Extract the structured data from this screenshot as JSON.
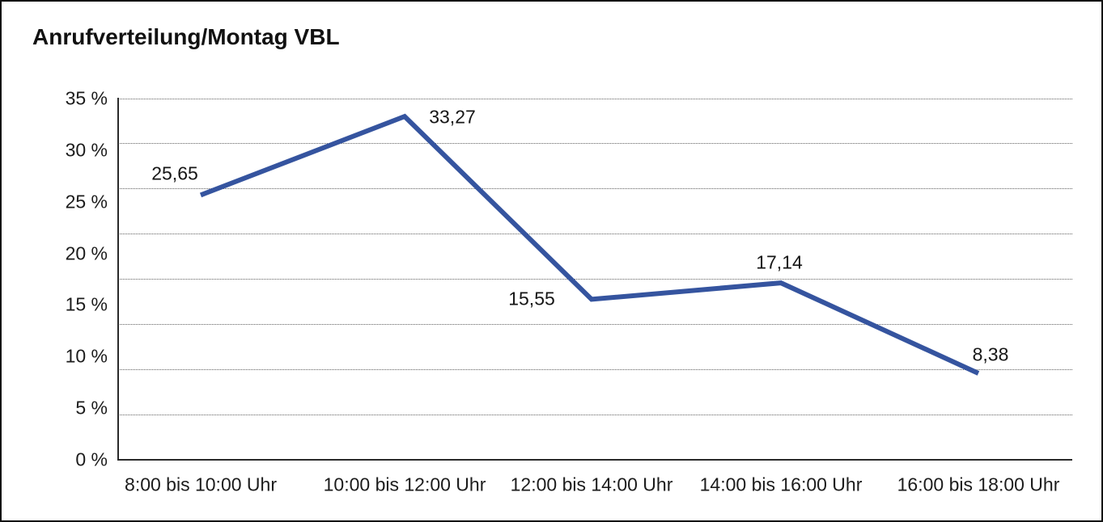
{
  "title": "Anrufverteilung/Montag VBL",
  "chart_data": {
    "type": "line",
    "title": "Anrufverteilung/Montag VBL",
    "categories": [
      "8:00 bis 10:00 Uhr",
      "10:00 bis 12:00 Uhr",
      "12:00 bis 14:00 Uhr",
      "14:00 bis 16:00 Uhr",
      "16:00 bis 18:00 Uhr"
    ],
    "values": [
      25.65,
      33.27,
      15.55,
      17.14,
      8.38
    ],
    "value_labels": [
      "25,65",
      "33,27",
      "15,55",
      "17,14",
      "8,38"
    ],
    "unit": "%",
    "y_tick_labels": [
      "35 %",
      "30 %",
      "25 %",
      "20 %",
      "15 %",
      "10 %",
      "5 %",
      "0 %"
    ],
    "ylim": [
      0,
      35
    ],
    "xlabel": "",
    "ylabel": "",
    "grid": "horizontal-dotted",
    "legend": "none",
    "line_color": "#35549F",
    "axis_color": "#2a2a2a",
    "gridline_color": "#5f5f5f"
  }
}
